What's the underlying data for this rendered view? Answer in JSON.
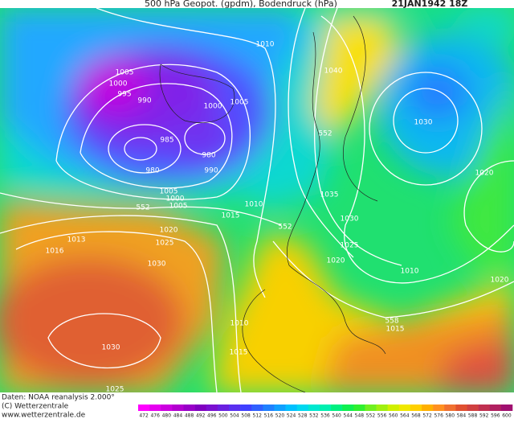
{
  "header": {
    "title": "500 hPa Geopot. (gpdm), Bodendruck (hPa)",
    "date": "21JAN1942 18Z"
  },
  "footer": {
    "source": "Daten: NOAA reanalysis 2.000°",
    "copyright": "(C) Wetterzentrale",
    "url": "www.wetterzentrale.de"
  },
  "isobar_labels": [
    "1010",
    "1040",
    "1005",
    "1000",
    "995",
    "990",
    "1000",
    "1005",
    "985",
    "980",
    "990",
    "980",
    "1030",
    "1020",
    "1035",
    "1005",
    "1000",
    "1005",
    "1010",
    "1015",
    "1030",
    "1025",
    "1020",
    "1010",
    "1020",
    "1020",
    "1025",
    "1030",
    "1013",
    "1016",
    "1010",
    "1015",
    "1030",
    "1025",
    "1015"
  ],
  "geopotential_labels": [
    "552",
    "552",
    "552",
    "558"
  ],
  "scale": {
    "ticks": [
      472,
      476,
      480,
      484,
      488,
      492,
      496,
      500,
      504,
      508,
      512,
      516,
      520,
      524,
      528,
      532,
      536,
      540,
      544,
      548,
      552,
      556,
      560,
      564,
      568,
      572,
      576,
      580,
      584,
      588,
      592,
      596,
      600
    ],
    "colors": [
      "#ff00ff",
      "#e600f0",
      "#cc00e0",
      "#b300d0",
      "#9900c8",
      "#8000c0",
      "#7a10d0",
      "#6a20e0",
      "#5a30f0",
      "#4040ff",
      "#3060ff",
      "#2080ff",
      "#10a0ff",
      "#00c0ff",
      "#00d8f0",
      "#00e8d0",
      "#00f0b0",
      "#00f080",
      "#10f050",
      "#30f030",
      "#70f020",
      "#a0f010",
      "#d0f000",
      "#f0e800",
      "#ffd000",
      "#ffb000",
      "#ff9020",
      "#f07030",
      "#e05030",
      "#d04040",
      "#c03050",
      "#b02060",
      "#a01070"
    ]
  }
}
